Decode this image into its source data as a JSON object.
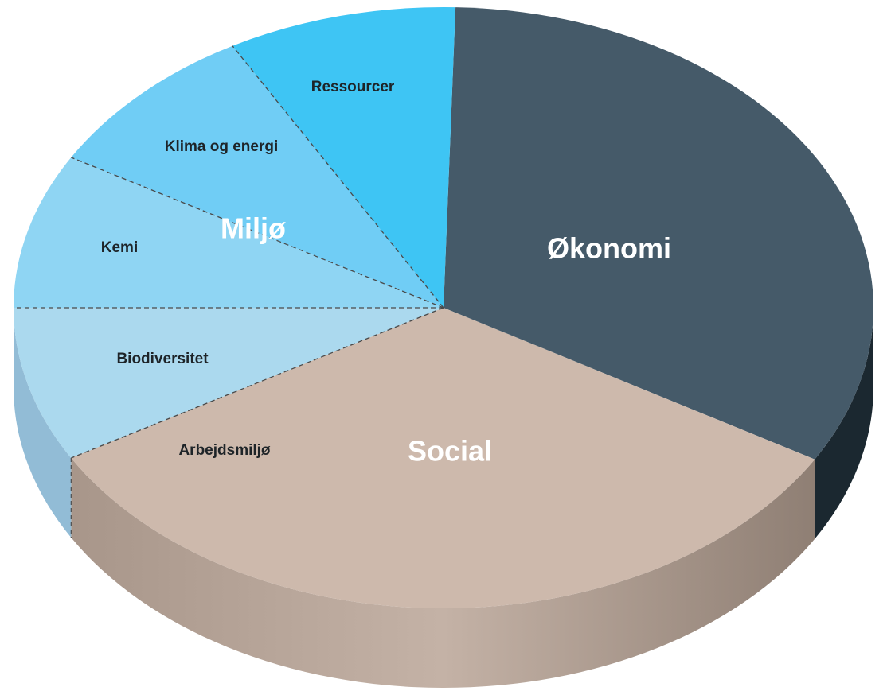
{
  "sections": [
    {
      "label": "Økonomi"
    },
    {
      "label": "Social",
      "subs": [
        "Arbejdsmiljø"
      ]
    },
    {
      "label": "Miljø",
      "subs": [
        "Ressourcer",
        "Klima og energi",
        "Kemi",
        "Biodiversitet"
      ]
    }
  ]
}
